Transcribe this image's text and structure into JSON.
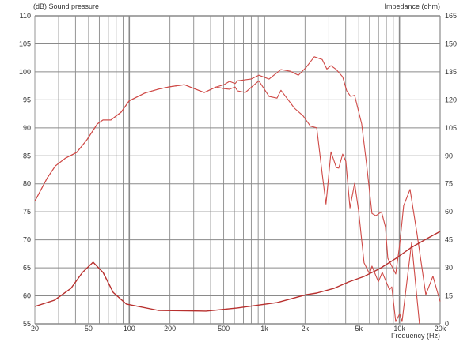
{
  "chart_data": {
    "type": "line",
    "left_axis_label": "(dB)  Sound pressure",
    "right_axis_label": "Impedance  (ohm)",
    "xlabel": "Frequency  (Hz)",
    "x_scale": "log",
    "xlim": [
      20,
      20000
    ],
    "ylim_left": [
      55,
      110
    ],
    "ylim_right": [
      0,
      165
    ],
    "grid": true,
    "x_ticks": [
      {
        "value": 20,
        "label": "20"
      },
      {
        "value": 50,
        "label": "50"
      },
      {
        "value": 100,
        "label": "100"
      },
      {
        "value": 200,
        "label": "200"
      },
      {
        "value": 500,
        "label": "500"
      },
      {
        "value": 1000,
        "label": "1k"
      },
      {
        "value": 2000,
        "label": "2k"
      },
      {
        "value": 5000,
        "label": "5k"
      },
      {
        "value": 10000,
        "label": "10k"
      },
      {
        "value": 20000,
        "label": "20k"
      }
    ],
    "y_ticks_left": [
      "110",
      "105",
      "100",
      "95",
      "90",
      "85",
      "80",
      "75",
      "70",
      "65",
      "60",
      "55"
    ],
    "y_ticks_right": [
      "165",
      "150",
      "135",
      "120",
      "105",
      "90",
      "75",
      "60",
      "45",
      "30",
      "15",
      "0"
    ],
    "colors": {
      "spl": "#cf4a47",
      "impedance": "#b8302e",
      "grid": "#8a8a8a"
    },
    "series": [
      {
        "axis": "left",
        "points": [
          [
            20,
            76.9
          ],
          [
            24.8,
            81.1
          ],
          [
            28.4,
            83.2
          ],
          [
            33.8,
            84.6
          ],
          [
            40.8,
            85.6
          ],
          [
            48.7,
            87.9
          ],
          [
            58,
            90.7
          ],
          [
            63.8,
            91.4
          ],
          [
            73,
            91.4
          ],
          [
            87,
            92.8
          ],
          [
            99.6,
            94.8
          ],
          [
            130,
            96.2
          ],
          [
            164,
            96.9
          ],
          [
            195,
            97.3
          ],
          [
            256,
            97.7
          ],
          [
            310,
            96.9
          ],
          [
            359,
            96.3
          ],
          [
            405,
            96.9
          ],
          [
            440,
            97.3
          ],
          [
            502,
            97.7
          ],
          [
            552,
            98.3
          ],
          [
            607,
            97.9
          ],
          [
            632,
            98.4
          ],
          [
            794,
            98.7
          ],
          [
            910,
            99.4
          ],
          [
            1084,
            98.7
          ],
          [
            1327,
            100.4
          ],
          [
            1560,
            100.1
          ],
          [
            1786,
            99.4
          ],
          [
            2040,
            100.8
          ],
          [
            2340,
            102.7
          ],
          [
            2680,
            102.2
          ],
          [
            2900,
            100.5
          ],
          [
            3110,
            101.1
          ],
          [
            3410,
            100.4
          ],
          [
            3800,
            99.1
          ],
          [
            4070,
            96.6
          ],
          [
            4350,
            95.6
          ],
          [
            4660,
            95.8
          ],
          [
            5250,
            90.7
          ],
          [
            5700,
            83.6
          ],
          [
            6260,
            74.7
          ],
          [
            6700,
            74.3
          ],
          [
            7360,
            75
          ],
          [
            7870,
            72.3
          ],
          [
            8200,
            66.7
          ],
          [
            9380,
            63.9
          ],
          [
            10040,
            69.1
          ],
          [
            10740,
            76.1
          ],
          [
            11970,
            79
          ],
          [
            13500,
            71
          ],
          [
            15660,
            60.2
          ],
          [
            17700,
            63.5
          ],
          [
            20000,
            59
          ]
        ]
      },
      {
        "axis": "left",
        "points": [
          [
            20,
            76.9
          ],
          [
            24.8,
            81.1
          ],
          [
            28.4,
            83.2
          ],
          [
            33.8,
            84.6
          ],
          [
            40.8,
            85.6
          ],
          [
            48.7,
            87.9
          ],
          [
            58,
            90.7
          ],
          [
            63.8,
            91.4
          ],
          [
            73,
            91.4
          ],
          [
            87,
            92.8
          ],
          [
            99.6,
            94.8
          ],
          [
            130,
            96.2
          ],
          [
            164,
            96.9
          ],
          [
            195,
            97.3
          ],
          [
            256,
            97.7
          ],
          [
            310,
            96.9
          ],
          [
            359,
            96.3
          ],
          [
            405,
            96.9
          ],
          [
            440,
            97.3
          ],
          [
            502,
            97
          ],
          [
            552,
            96.9
          ],
          [
            607,
            97.3
          ],
          [
            632,
            96.6
          ],
          [
            723,
            96.3
          ],
          [
            805,
            97.3
          ],
          [
            910,
            98.4
          ],
          [
            1084,
            95.6
          ],
          [
            1240,
            95.3
          ],
          [
            1327,
            96.7
          ],
          [
            1670,
            93.5
          ],
          [
            1940,
            92.1
          ],
          [
            2190,
            90.3
          ],
          [
            2440,
            90
          ],
          [
            2680,
            81.8
          ],
          [
            2860,
            76.4
          ],
          [
            3110,
            85.7
          ],
          [
            3410,
            82.9
          ],
          [
            3550,
            82.8
          ],
          [
            3800,
            85.3
          ],
          [
            4010,
            84
          ],
          [
            4300,
            75.7
          ],
          [
            4660,
            80.1
          ],
          [
            4980,
            75.2
          ],
          [
            5470,
            65.9
          ],
          [
            6010,
            63.9
          ],
          [
            6260,
            65.3
          ],
          [
            6980,
            62.5
          ],
          [
            7460,
            64.2
          ],
          [
            8430,
            61.1
          ],
          [
            8770,
            61.6
          ],
          [
            9380,
            55.4
          ],
          [
            10040,
            56.8
          ],
          [
            10450,
            55.4
          ],
          [
            12300,
            69.5
          ],
          [
            14060,
            55
          ]
        ]
      },
      {
        "axis": "right",
        "points": [
          [
            20,
            9.3
          ],
          [
            28,
            12.7
          ],
          [
            37,
            19
          ],
          [
            45,
            27.5
          ],
          [
            54,
            33
          ],
          [
            64,
            27.5
          ],
          [
            76,
            16.9
          ],
          [
            95,
            10.6
          ],
          [
            164,
            7.2
          ],
          [
            369,
            6.8
          ],
          [
            632,
            8.5
          ],
          [
            1240,
            11.4
          ],
          [
            2040,
            15.6
          ],
          [
            2440,
            16.5
          ],
          [
            3270,
            19
          ],
          [
            4180,
            22.4
          ],
          [
            5470,
            25.4
          ],
          [
            7160,
            29.6
          ],
          [
            9380,
            35
          ],
          [
            12300,
            41
          ],
          [
            16000,
            45.7
          ],
          [
            20000,
            49.5
          ]
        ]
      }
    ]
  }
}
